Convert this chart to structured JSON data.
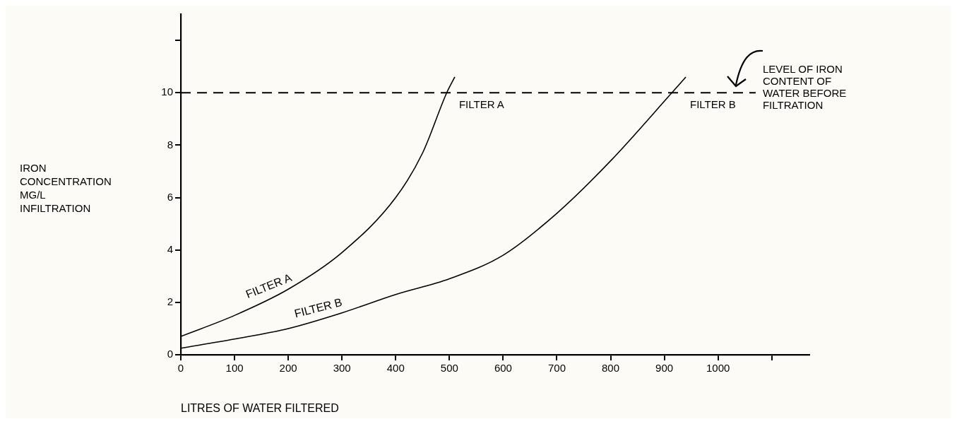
{
  "chart_data": {
    "type": "line",
    "xlabel": "LITRES OF WATER FILTERED",
    "ylabel": "IRON CONCENTRATION MG/L INFILTRATION",
    "xlim": [
      0,
      1170
    ],
    "xticks": [
      0,
      100,
      200,
      300,
      400,
      500,
      600,
      700,
      800,
      900,
      1000,
      {
        "value": 1100,
        "label": null
      }
    ],
    "ylim": [
      0,
      13
    ],
    "yticks": [
      0,
      2,
      4,
      6,
      8,
      10,
      {
        "value": 12,
        "label": null
      }
    ],
    "marker": "none",
    "line_style": "solid",
    "series": [
      {
        "name": "FILTER A",
        "color": "#000000",
        "x": [
          0,
          100,
          200,
          300,
          400,
          450,
          495,
          510
        ],
        "values": [
          0.7,
          1.5,
          2.5,
          3.9,
          6.0,
          7.7,
          10,
          10.6
        ]
      },
      {
        "name": "FILTER B",
        "color": "#000000",
        "x": [
          0,
          100,
          200,
          300,
          400,
          500,
          600,
          700,
          800,
          914,
          940
        ],
        "values": [
          0.25,
          0.6,
          1.0,
          1.6,
          2.3,
          2.9,
          3.8,
          5.4,
          7.4,
          10,
          10.6
        ]
      }
    ],
    "ref_lines": [
      {
        "axis": "y",
        "value": 10,
        "label": "LEVEL OF IRON CONTENT OF WATER BEFORE FILTRATION",
        "line_style": "dashed",
        "color": "#000000"
      }
    ],
    "annotations": [
      {
        "text": "FILTER A",
        "x": 170,
        "y": 2.3
      },
      {
        "text": "FILTER B",
        "x": 260,
        "y": 1.45
      }
    ]
  }
}
